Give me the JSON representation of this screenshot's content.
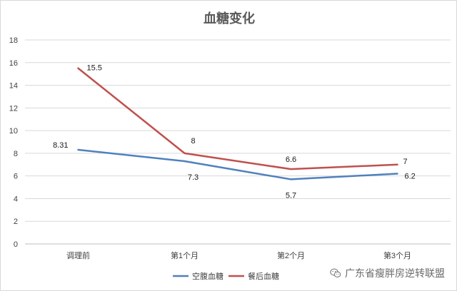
{
  "chart_data": {
    "type": "line",
    "title": "血糖变化",
    "categories": [
      "调理前",
      "第1个月",
      "第2个月",
      "第3个月"
    ],
    "series": [
      {
        "name": "空腹血糖",
        "color": "#4f81bd",
        "values": [
          8.31,
          7.3,
          5.7,
          6.2
        ],
        "labels": [
          "8.31",
          "7.3",
          "5.7",
          "6.2"
        ]
      },
      {
        "name": "餐后血糖",
        "color": "#c0504d",
        "values": [
          15.5,
          8,
          6.6,
          7
        ],
        "labels": [
          "15.5",
          "8",
          "6.6",
          "7"
        ]
      }
    ],
    "y_ticks": [
      0,
      2,
      4,
      6,
      8,
      10,
      12,
      14,
      16,
      18
    ],
    "ylim": [
      0,
      18
    ],
    "grid": true,
    "legend_position": "bottom"
  },
  "watermark": {
    "text": "广东省瘦胖房逆转联盟",
    "icon": "wechat-icon"
  }
}
